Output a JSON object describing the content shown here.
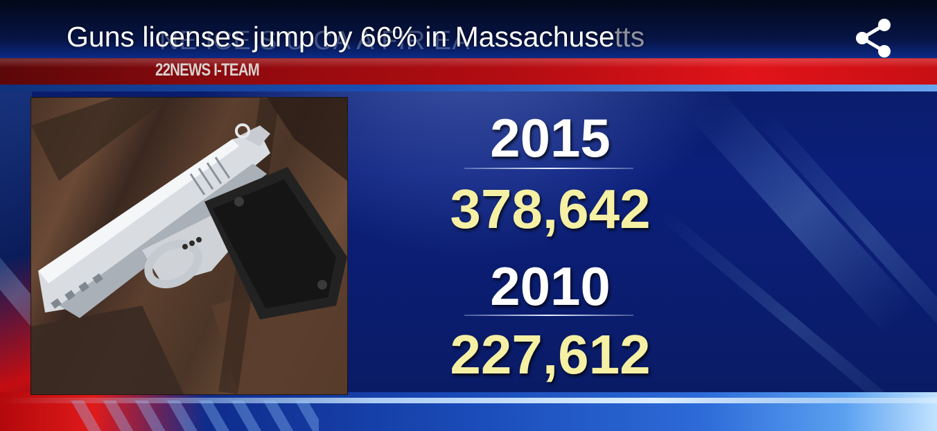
{
  "video": {
    "title": "Guns licenses jump by 66% in Massachusetts",
    "title_main": "Guns licenses jump by 66% in Massachuse",
    "title_tail": "tts",
    "ghost_caption": "NE  ICE  S  U     CA  A  FIR  EA",
    "share_icon": "share-icon"
  },
  "broadcast": {
    "segment_label": "22NEWS I-TEAM"
  },
  "graphic": {
    "photo_subject": "pistol-image",
    "stats": [
      {
        "year": "2015",
        "value": "378,642"
      },
      {
        "year": "2010",
        "value": "227,612"
      }
    ]
  },
  "colors": {
    "accent_red": "#d0121a",
    "background_blue": "#0b1f7a",
    "value_yellow": "#f6f0a4",
    "year_white": "#ffffff"
  }
}
